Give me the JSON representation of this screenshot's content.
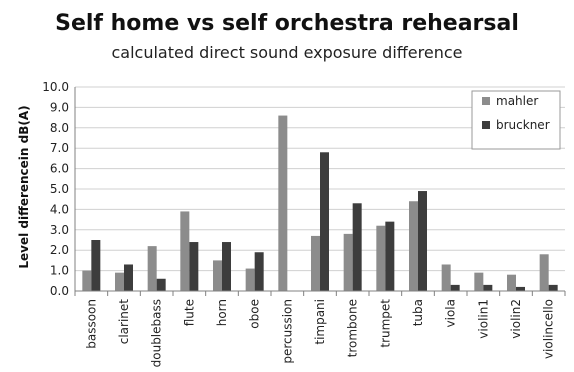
{
  "chart_data": {
    "type": "bar",
    "title": "Self home vs self orchestra rehearsal",
    "subtitle": "calculated direct sound exposure difference",
    "xlabel": "",
    "ylabel": "Level differencein dB(A)",
    "ylim": [
      0,
      10
    ],
    "yticks": [
      "0.0",
      "1.0",
      "2.0",
      "3.0",
      "4.0",
      "5.0",
      "6.0",
      "7.0",
      "8.0",
      "9.0",
      "10.0"
    ],
    "grid": true,
    "legend": "top-right",
    "categories": [
      "bassoon",
      "clarinet",
      "doublebass",
      "flute",
      "horn",
      "oboe",
      "percussion",
      "timpani",
      "trombone",
      "trumpet",
      "tuba",
      "viola",
      "violin1",
      "violin2",
      "violincello"
    ],
    "series": [
      {
        "name": "mahler",
        "color": "#8c8c8c",
        "values": [
          1.0,
          0.9,
          2.2,
          3.9,
          1.5,
          1.1,
          8.6,
          2.7,
          2.8,
          3.2,
          4.4,
          1.3,
          0.9,
          0.8,
          1.8
        ]
      },
      {
        "name": "bruckner",
        "color": "#3d3d3d",
        "values": [
          2.5,
          1.3,
          0.6,
          2.4,
          2.4,
          1.9,
          0.0,
          6.8,
          4.3,
          3.4,
          4.9,
          0.3,
          0.3,
          0.2,
          0.3
        ]
      }
    ]
  }
}
